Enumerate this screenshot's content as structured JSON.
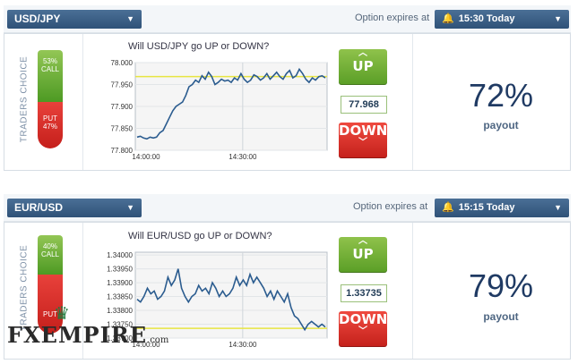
{
  "widgets": [
    {
      "pair": "USD/JPY",
      "expires_label": "Option expires at",
      "expiry": "15:30 Today",
      "question": "Will USD/JPY go UP or DOWN?",
      "traders_choice_label": "TRADERS CHOICE",
      "call_pct": "53%",
      "call_label": "CALL",
      "put_label": "PUT",
      "put_pct": "47%",
      "call_fraction": 0.53,
      "chart_data": {
        "type": "line",
        "y_ticks": [
          "78.000",
          "77.950",
          "77.900",
          "77.850",
          "77.800"
        ],
        "x_ticks": [
          "14:00:00",
          "14:30:00"
        ],
        "ylim": [
          77.8,
          78.0
        ],
        "strike": 77.968,
        "series": [
          {
            "values": [
              77.83,
              77.832,
              77.828,
              77.826,
              77.83,
              77.828,
              77.83,
              77.84,
              77.845,
              77.86,
              77.875,
              77.89,
              77.9,
              77.905,
              77.91,
              77.925,
              77.945,
              77.95,
              77.96,
              77.955,
              77.97,
              77.962,
              77.978,
              77.968,
              77.95,
              77.955,
              77.962,
              77.958,
              77.96,
              77.955,
              77.965,
              77.96,
              77.975,
              77.962,
              77.955,
              77.96,
              77.972,
              77.968,
              77.96,
              77.965,
              77.975,
              77.962,
              77.97,
              77.978,
              77.968,
              77.962,
              77.975,
              77.982,
              77.965,
              77.97,
              77.985,
              77.975,
              77.962,
              77.955,
              77.965,
              77.96,
              77.968,
              77.97,
              77.965
            ]
          }
        ]
      },
      "up_label": "UP",
      "down_label": "DOWN",
      "price": "77.968",
      "payout_pct": "72%",
      "payout_label": "payout"
    },
    {
      "pair": "EUR/USD",
      "expires_label": "Option expires at",
      "expiry": "15:15 Today",
      "question": "Will EUR/USD go UP or DOWN?",
      "traders_choice_label": "TRADERS CHOICE",
      "call_pct": "40%",
      "call_label": "CALL",
      "put_label": "PUT",
      "put_pct": "",
      "call_fraction": 0.4,
      "chart_data": {
        "type": "line",
        "y_ticks": [
          "1.34000",
          "1.33950",
          "1.33900",
          "1.33850",
          "1.33800",
          "1.33750",
          "1.33700"
        ],
        "x_ticks": [
          "14:00:00",
          "14:30:00"
        ],
        "ylim": [
          1.337,
          1.3401
        ],
        "strike": 1.33735,
        "series": [
          {
            "values": [
              1.3384,
              1.3383,
              1.3385,
              1.3388,
              1.3386,
              1.3387,
              1.3384,
              1.3385,
              1.3387,
              1.3392,
              1.3389,
              1.3391,
              1.3395,
              1.3388,
              1.3385,
              1.3383,
              1.3385,
              1.3386,
              1.3389,
              1.3387,
              1.3388,
              1.3386,
              1.339,
              1.3388,
              1.3385,
              1.3387,
              1.3385,
              1.3386,
              1.3388,
              1.3392,
              1.3389,
              1.3391,
              1.3389,
              1.3393,
              1.339,
              1.3392,
              1.339,
              1.3388,
              1.3385,
              1.3387,
              1.3384,
              1.3387,
              1.3385,
              1.3383,
              1.3386,
              1.3381,
              1.3378,
              1.3377,
              1.3375,
              1.3373,
              1.3375,
              1.3376,
              1.3375,
              1.3374,
              1.3375,
              1.3374
            ]
          }
        ]
      },
      "up_label": "UP",
      "down_label": "DOWN",
      "price": "1.33735",
      "payout_pct": "79%",
      "payout_label": "payout"
    }
  ],
  "logo": {
    "name": "FXEMPIRE",
    "suffix": ".com"
  },
  "colors": {
    "call": "#6aab35",
    "put": "#d93029",
    "line": "#2b5c8f",
    "strike": "#e7e542",
    "header": "#3a5f86"
  }
}
